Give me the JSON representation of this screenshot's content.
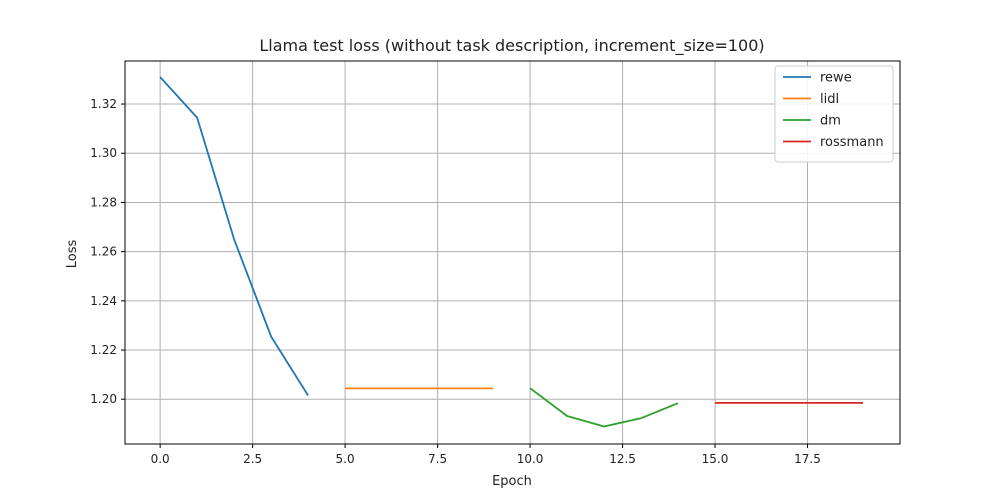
{
  "chart_data": {
    "type": "line",
    "title": "Llama test loss (without task description, increment_size=100)",
    "xlabel": "Epoch",
    "ylabel": "Loss",
    "xlim": [
      -0.95,
      20
    ],
    "ylim": [
      1.1818,
      1.3375
    ],
    "xticks": [
      0.0,
      2.5,
      5.0,
      7.5,
      10.0,
      12.5,
      15.0,
      17.5
    ],
    "xtick_labels": [
      "0.0",
      "2.5",
      "5.0",
      "7.5",
      "10.0",
      "12.5",
      "15.0",
      "17.5"
    ],
    "yticks": [
      1.2,
      1.22,
      1.24,
      1.26,
      1.28,
      1.3,
      1.32
    ],
    "ytick_labels": [
      "1.20",
      "1.22",
      "1.24",
      "1.26",
      "1.28",
      "1.30",
      "1.32"
    ],
    "grid": true,
    "legend_position": "top-right",
    "series": [
      {
        "name": "rewe",
        "color": "#1f77b4",
        "x": [
          0,
          1,
          2,
          3,
          4
        ],
        "y": [
          1.331,
          1.3145,
          1.265,
          1.2255,
          1.2015
        ]
      },
      {
        "name": "lidl",
        "color": "#ff7f0e",
        "x": [
          5,
          6,
          7,
          8,
          9
        ],
        "y": [
          1.2044,
          1.2044,
          1.2044,
          1.2044,
          1.2044
        ]
      },
      {
        "name": "dm",
        "color": "#2ca02c",
        "x": [
          10,
          11,
          12,
          13,
          14
        ],
        "y": [
          1.2045,
          1.1932,
          1.1889,
          1.1923,
          1.1984
        ]
      },
      {
        "name": "rossmann",
        "color": "#d62728",
        "x": [
          15,
          16,
          17,
          18,
          19
        ],
        "y": [
          1.1985,
          1.1985,
          1.1985,
          1.1985,
          1.1985
        ]
      }
    ]
  }
}
